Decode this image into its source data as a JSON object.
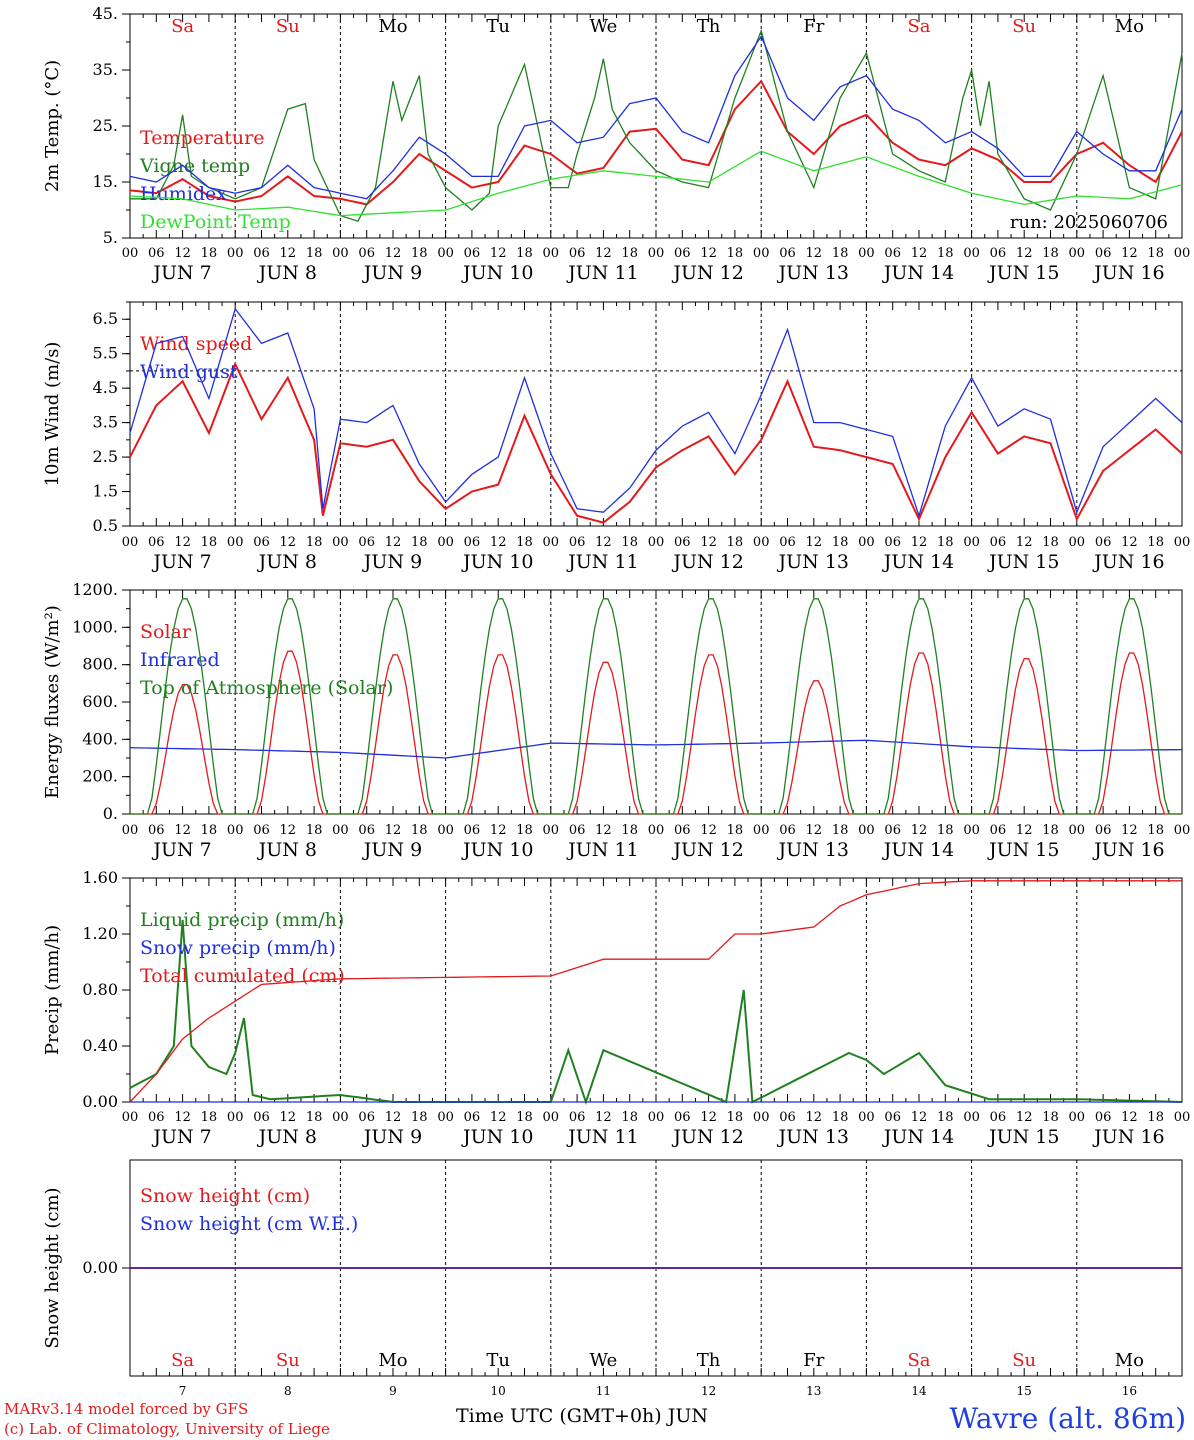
{
  "run_label": "run: 2025060706",
  "footer": {
    "model": "MARv3.14 model forced by GFS",
    "copyright": "(c) Lab. of Climatology, University of Liege",
    "xlabel": "Time UTC (GMT+0h) JUN",
    "station": "Wavre (alt. 86m)"
  },
  "days": [
    {
      "weekday": "Sa",
      "weekend": true,
      "date": "JUN  7",
      "day": "7"
    },
    {
      "weekday": "Su",
      "weekend": true,
      "date": "JUN  8",
      "day": "8"
    },
    {
      "weekday": "Mo",
      "weekend": false,
      "date": "JUN  9",
      "day": "9"
    },
    {
      "weekday": "Tu",
      "weekend": false,
      "date": "JUN 10",
      "day": "10"
    },
    {
      "weekday": "We",
      "weekend": false,
      "date": "JUN 11",
      "day": "11"
    },
    {
      "weekday": "Th",
      "weekend": false,
      "date": "JUN 12",
      "day": "12"
    },
    {
      "weekday": "Fr",
      "weekend": false,
      "date": "JUN 13",
      "day": "13"
    },
    {
      "weekday": "Sa",
      "weekend": true,
      "date": "JUN 14",
      "day": "14"
    },
    {
      "weekday": "Su",
      "weekend": true,
      "date": "JUN 15",
      "day": "15"
    },
    {
      "weekday": "Mo",
      "weekend": false,
      "date": "JUN 16",
      "day": "16"
    }
  ],
  "hour_labels": [
    "00",
    "06",
    "12",
    "18"
  ],
  "colors": {
    "red": "#e31a1c",
    "green": "#208020",
    "blue": "#1f2fe0",
    "lightgreen": "#2fe02f",
    "axis": "#000000"
  },
  "chart_data": [
    {
      "type": "line",
      "panel": "temperature",
      "ylabel": "2m Temp. (°C)",
      "ylim": [
        5,
        45
      ],
      "yticks": [
        "5.",
        "15.",
        "25.",
        "35.",
        "45."
      ],
      "ytick_values": [
        5,
        15,
        25,
        35,
        45
      ],
      "x_unit": "hours since 2025-06-07 00 UTC",
      "series": [
        {
          "name": "Temperature",
          "color": "#e31a1c",
          "x": [
            0,
            6,
            12,
            18,
            24,
            30,
            36,
            42,
            48,
            54,
            60,
            66,
            72,
            78,
            84,
            90,
            96,
            102,
            108,
            114,
            120,
            126,
            132,
            138,
            144,
            150,
            156,
            162,
            168,
            174,
            180,
            186,
            192,
            198,
            204,
            210,
            216,
            222,
            228,
            234,
            240
          ],
          "values": [
            13.5,
            13,
            15.5,
            12.5,
            11.5,
            12.5,
            16,
            12.5,
            12,
            11,
            15,
            20,
            17,
            14,
            15,
            21.5,
            20,
            16.5,
            17.5,
            24,
            24.5,
            19,
            18,
            28,
            33,
            24,
            20,
            25,
            27,
            22,
            19,
            18,
            21,
            19,
            15,
            15,
            20,
            22,
            18,
            15,
            24
          ]
        },
        {
          "name": "Vigne temp",
          "color": "#208020",
          "x": [
            0,
            6,
            10,
            12,
            14,
            18,
            24,
            30,
            36,
            40,
            42,
            48,
            52,
            56,
            60,
            62,
            66,
            68,
            72,
            78,
            82,
            84,
            90,
            96,
            100,
            102,
            106,
            108,
            110,
            114,
            120,
            126,
            132,
            138,
            144,
            150,
            156,
            162,
            168,
            174,
            180,
            186,
            190,
            192,
            194,
            196,
            198,
            204,
            210,
            216,
            222,
            228,
            234,
            240
          ],
          "values": [
            12,
            12,
            18,
            27,
            16,
            14,
            12,
            14,
            28,
            29,
            19,
            9,
            8,
            14,
            33,
            26,
            34,
            20,
            14,
            10,
            13,
            25,
            36,
            14,
            14,
            20,
            30,
            37,
            28,
            22,
            17,
            15,
            14,
            30,
            42,
            24,
            14,
            30,
            38,
            20,
            17,
            15,
            30,
            35,
            25,
            33,
            20,
            12,
            10,
            20,
            34,
            14,
            12,
            38
          ]
        },
        {
          "name": "Humidex",
          "color": "#1f2fe0",
          "x": [
            0,
            6,
            12,
            18,
            24,
            30,
            36,
            42,
            48,
            54,
            60,
            66,
            72,
            78,
            84,
            90,
            96,
            102,
            108,
            114,
            120,
            126,
            132,
            138,
            144,
            150,
            156,
            162,
            168,
            174,
            180,
            186,
            192,
            198,
            204,
            210,
            216,
            222,
            228,
            234,
            240
          ],
          "values": [
            16,
            15,
            18,
            14,
            13,
            14,
            18,
            14,
            13,
            12,
            17,
            23,
            20,
            16,
            16,
            25,
            26,
            22,
            23,
            29,
            30,
            24,
            22,
            34,
            41,
            30,
            26,
            32,
            34,
            28,
            26,
            22,
            24,
            21,
            16,
            16,
            24,
            20,
            17,
            17,
            28
          ]
        },
        {
          "name": "DewPoint Temp",
          "color": "#2fe02f",
          "x": [
            0,
            12,
            24,
            36,
            48,
            60,
            72,
            84,
            96,
            108,
            120,
            132,
            144,
            156,
            168,
            180,
            192,
            204,
            216,
            228,
            240
          ],
          "values": [
            12.5,
            12,
            10,
            10.5,
            9,
            9.5,
            10,
            13,
            15.5,
            17,
            16,
            15,
            20.5,
            17,
            19.5,
            16,
            13,
            11,
            12.5,
            12,
            14.5
          ]
        }
      ]
    },
    {
      "type": "line",
      "panel": "wind",
      "ylabel": "10m Wind (m/s)",
      "ylim": [
        0.5,
        7
      ],
      "yticks": [
        "0.5",
        "1.5",
        "2.5",
        "3.5",
        "4.5",
        "5.5",
        "6.5"
      ],
      "ytick_values": [
        0.5,
        1.5,
        2.5,
        3.5,
        4.5,
        5.5,
        6.5
      ],
      "reference_line": 5,
      "series": [
        {
          "name": "Wind speed",
          "color": "#e31a1c",
          "x": [
            0,
            6,
            12,
            18,
            24,
            30,
            36,
            42,
            44,
            48,
            54,
            60,
            66,
            72,
            78,
            84,
            90,
            96,
            102,
            108,
            114,
            120,
            126,
            132,
            138,
            144,
            150,
            156,
            162,
            168,
            174,
            180,
            186,
            192,
            198,
            204,
            210,
            216,
            222,
            228,
            234,
            240
          ],
          "values": [
            2.5,
            4,
            4.7,
            3.2,
            5.2,
            3.6,
            4.8,
            3,
            0.8,
            2.9,
            2.8,
            3,
            1.8,
            1,
            1.5,
            1.7,
            3.7,
            2,
            0.8,
            0.6,
            1.2,
            2.2,
            2.7,
            3.1,
            2,
            3,
            4.7,
            2.8,
            2.7,
            2.5,
            2.3,
            0.7,
            2.5,
            3.8,
            2.6,
            3.1,
            2.9,
            0.7,
            2.1,
            2.7,
            3.3,
            2.6
          ]
        },
        {
          "name": "Wind gust",
          "color": "#1f2fe0",
          "x": [
            0,
            6,
            12,
            18,
            24,
            30,
            36,
            42,
            44,
            48,
            54,
            60,
            66,
            72,
            78,
            84,
            90,
            96,
            102,
            108,
            114,
            120,
            126,
            132,
            138,
            144,
            150,
            156,
            162,
            168,
            174,
            180,
            186,
            192,
            198,
            204,
            210,
            216,
            222,
            228,
            234,
            240
          ],
          "values": [
            3.2,
            5.8,
            6,
            4.2,
            6.8,
            5.8,
            6.1,
            3.9,
            1,
            3.6,
            3.5,
            4,
            2.3,
            1.2,
            2,
            2.5,
            4.8,
            2.6,
            1,
            0.9,
            1.6,
            2.7,
            3.4,
            3.8,
            2.6,
            4.3,
            6.2,
            3.5,
            3.5,
            3.3,
            3.1,
            0.8,
            3.4,
            4.8,
            3.4,
            3.9,
            3.6,
            0.9,
            2.8,
            3.5,
            4.2,
            3.5
          ]
        }
      ]
    },
    {
      "type": "line",
      "panel": "radiation",
      "ylabel": "Energy fluxes (W/m²)",
      "ylim": [
        0,
        1200
      ],
      "yticks": [
        "0.",
        "200.",
        "400.",
        "600.",
        "800.",
        "1000.",
        "1200."
      ],
      "ytick_values": [
        0,
        200,
        400,
        600,
        800,
        1000,
        1200
      ],
      "series": [
        {
          "name": "Solar",
          "color": "#e31a1c",
          "day_peaks": [
            700,
            880,
            860,
            860,
            820,
            860,
            720,
            870,
            840,
            870
          ]
        },
        {
          "name": "Infrared",
          "color": "#1f2fe0",
          "x": [
            0,
            24,
            48,
            72,
            96,
            120,
            144,
            168,
            192,
            216,
            240
          ],
          "values": [
            355,
            345,
            330,
            300,
            380,
            370,
            380,
            395,
            360,
            340,
            345
          ]
        },
        {
          "name": "Top of Atmosphere (Solar)",
          "color": "#208020",
          "day_peak": 1160
        }
      ]
    },
    {
      "type": "line",
      "panel": "precipitation",
      "ylabel": "Precip (mm/h)",
      "ylim": [
        0,
        1.6
      ],
      "yticks": [
        "0.00",
        "0.40",
        "0.80",
        "1.20",
        "1.60"
      ],
      "ytick_values": [
        0,
        0.4,
        0.8,
        1.2,
        1.6
      ],
      "series": [
        {
          "name": "Liquid precip (mm/h)",
          "color": "#208020",
          "x": [
            0,
            6,
            10,
            12,
            14,
            18,
            22,
            24,
            26,
            28,
            32,
            48,
            60,
            96,
            100,
            104,
            108,
            136,
            140,
            142,
            164,
            168,
            172,
            180,
            186,
            196,
            216,
            240
          ],
          "values": [
            0.1,
            0.2,
            0.4,
            1.3,
            0.4,
            0.25,
            0.2,
            0.35,
            0.6,
            0.05,
            0.02,
            0.05,
            0,
            0,
            0.37,
            0,
            0.37,
            0,
            0.8,
            0,
            0.35,
            0.3,
            0.2,
            0.35,
            0.12,
            0.02,
            0.02,
            0
          ]
        },
        {
          "name": "Snow precip (mm/h)",
          "color": "#1f2fe0",
          "x": [
            0,
            240
          ],
          "values": [
            0,
            0
          ]
        },
        {
          "name": "Total cumulated (cm)",
          "color": "#e31a1c",
          "x": [
            0,
            6,
            12,
            18,
            24,
            30,
            48,
            72,
            96,
            102,
            108,
            120,
            132,
            138,
            144,
            156,
            162,
            168,
            174,
            180,
            186,
            192,
            240
          ],
          "values": [
            0,
            0.2,
            0.45,
            0.6,
            0.72,
            0.84,
            0.88,
            0.89,
            0.9,
            0.96,
            1.02,
            1.02,
            1.02,
            1.2,
            1.2,
            1.25,
            1.4,
            1.48,
            1.52,
            1.56,
            1.57,
            1.58,
            1.58
          ]
        }
      ]
    },
    {
      "type": "line",
      "panel": "snow",
      "ylabel": "Snow height (cm)",
      "ylim": [
        -1,
        1
      ],
      "yticks": [
        "0.00"
      ],
      "ytick_values": [
        0
      ],
      "series": [
        {
          "name": "Snow height (cm)",
          "color": "#e31a1c",
          "x": [
            0,
            240
          ],
          "values": [
            0,
            0
          ]
        },
        {
          "name": "Snow height (cm W.E.)",
          "color": "#1f2fe0",
          "x": [
            0,
            240
          ],
          "values": [
            0,
            0
          ]
        }
      ]
    }
  ]
}
